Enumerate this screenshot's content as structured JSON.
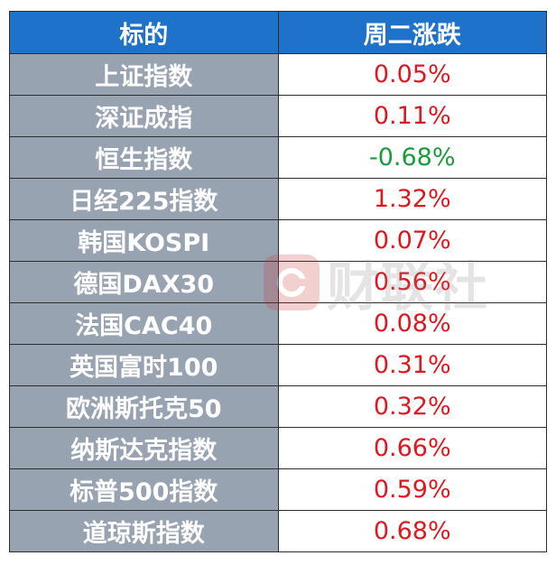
{
  "table": {
    "headers": [
      "标的",
      "周二涨跌"
    ],
    "rows": [
      {
        "name": "上证指数",
        "change": "0.05%"
      },
      {
        "name": "深证成指",
        "change": "0.11%"
      },
      {
        "name": "恒生指数",
        "change": "-0.68%"
      },
      {
        "name": "日经225指数",
        "change": "1.32%"
      },
      {
        "name": "韩国KOSPI",
        "change": "0.07%"
      },
      {
        "name": "德国DAX30",
        "change": "0.56%"
      },
      {
        "name": "法国CAC40",
        "change": "0.08%"
      },
      {
        "name": "英国富时100",
        "change": "0.31%"
      },
      {
        "name": "欧洲斯托克50",
        "change": "0.32%"
      },
      {
        "name": "纳斯达克指数",
        "change": "0.66%"
      },
      {
        "name": "标普500指数",
        "change": "0.59%"
      },
      {
        "name": "道琼斯指数",
        "change": "0.68%"
      }
    ]
  },
  "watermark": {
    "text": "财联社",
    "icon": "cls-logo-icon"
  },
  "colors": {
    "header_bg": "#1e72c9",
    "name_bg": "#98a3b2",
    "up": "#e0171f",
    "down": "#1a9b3c"
  }
}
